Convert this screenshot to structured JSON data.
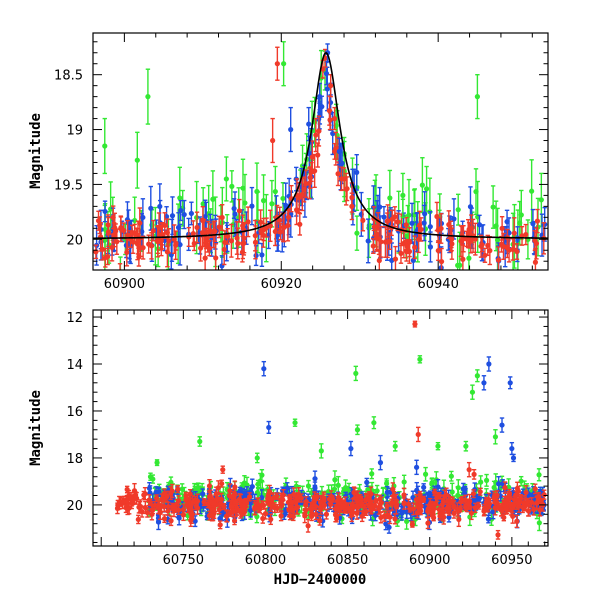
{
  "colors": {
    "green": "#33e833",
    "blue": "#1f4fe0",
    "red": "#f03a2a",
    "model": "#000000"
  },
  "chart_data": [
    {
      "type": "scatter",
      "title": "",
      "xlabel": "",
      "ylabel": "Magnitude",
      "xlim": [
        60896,
        60954
      ],
      "ylim": [
        20.28,
        18.12
      ],
      "y_inverted": true,
      "xticks": [
        60900,
        60920,
        60940
      ],
      "xtick_labels": [
        "60900",
        "60920",
        "60940"
      ],
      "yticks": [
        18.5,
        19,
        19.5,
        20
      ],
      "ytick_labels": [
        "18.5",
        "19",
        "19.5",
        "20"
      ],
      "series": [
        {
          "name": "green",
          "color": "green",
          "generate": {
            "x0": 60896.2,
            "x1": 60953.8,
            "n": 95,
            "base": 19.85,
            "scatter": 0.18,
            "err": 0.22,
            "seed": 11
          }
        },
        {
          "name": "blue",
          "color": "blue",
          "generate": {
            "x0": 60896.2,
            "x1": 60953.8,
            "n": 150,
            "base": 19.95,
            "scatter": 0.12,
            "err": 0.14,
            "seed": 23
          }
        },
        {
          "name": "red",
          "color": "red",
          "generate": {
            "x0": 60896.2,
            "x1": 60953.8,
            "n": 200,
            "base": 20.0,
            "scatter": 0.1,
            "err": 0.1,
            "seed": 37
          }
        }
      ],
      "flare_points": [
        {
          "x": 60918.9,
          "y": 19.1,
          "err": 0.2,
          "series": "red"
        },
        {
          "x": 60919.5,
          "y": 18.4,
          "err": 0.15,
          "series": "red"
        },
        {
          "x": 60920.3,
          "y": 18.4,
          "err": 0.2,
          "series": "green"
        },
        {
          "x": 60921.2,
          "y": 19.0,
          "err": 0.2,
          "series": "blue"
        },
        {
          "x": 60922.0,
          "y": 19.6,
          "err": 0.15,
          "series": "red"
        },
        {
          "x": 60923.5,
          "y": 18.95,
          "err": 0.15,
          "series": "blue"
        },
        {
          "x": 60924.4,
          "y": 19.05,
          "err": 0.15,
          "series": "red"
        },
        {
          "x": 60924.9,
          "y": 18.7,
          "err": 0.12,
          "series": "blue"
        },
        {
          "x": 60925.3,
          "y": 18.45,
          "err": 0.08,
          "series": "red"
        },
        {
          "x": 60925.6,
          "y": 18.35,
          "err": 0.08,
          "series": "red"
        },
        {
          "x": 60925.9,
          "y": 18.3,
          "err": 0.08,
          "series": "blue"
        },
        {
          "x": 60926.3,
          "y": 18.6,
          "err": 0.1,
          "series": "red"
        },
        {
          "x": 60926.8,
          "y": 18.9,
          "err": 0.1,
          "series": "red"
        },
        {
          "x": 60927.4,
          "y": 19.2,
          "err": 0.12,
          "series": "blue"
        },
        {
          "x": 60928.0,
          "y": 19.45,
          "err": 0.1,
          "series": "red"
        },
        {
          "x": 60929.0,
          "y": 19.7,
          "err": 0.12,
          "series": "red"
        },
        {
          "x": 60903.0,
          "y": 18.7,
          "err": 0.25,
          "series": "green"
        },
        {
          "x": 60913.0,
          "y": 19.45,
          "err": 0.2,
          "series": "green"
        },
        {
          "x": 60935.5,
          "y": 19.6,
          "err": 0.2,
          "series": "green"
        },
        {
          "x": 60945.0,
          "y": 18.7,
          "err": 0.2,
          "series": "green"
        },
        {
          "x": 60897.5,
          "y": 19.15,
          "err": 0.25,
          "series": "green"
        }
      ],
      "model": {
        "baseline": 20.0,
        "peak": 18.3,
        "t0": 60925.7,
        "tau": 2.2
      }
    },
    {
      "type": "scatter",
      "title": "",
      "xlabel": "HJD−2400000",
      "ylabel": "Magnitude",
      "xlim": [
        60695,
        60972
      ],
      "ylim": [
        21.75,
        11.7
      ],
      "y_inverted": true,
      "xticks": [
        60750,
        60800,
        60850,
        60900,
        60950
      ],
      "xtick_labels": [
        "60750",
        "60800",
        "60850",
        "60900",
        "60950"
      ],
      "yticks": [
        12,
        14,
        16,
        18,
        20
      ],
      "ytick_labels": [
        "12",
        "14",
        "16",
        "18",
        "20"
      ],
      "series": [
        {
          "name": "green",
          "color": "green",
          "generate": {
            "x0": 60728,
            "x1": 60970,
            "n": 260,
            "base": 19.7,
            "scatter": 0.45,
            "err": 0.25,
            "seed": 5
          }
        },
        {
          "name": "blue",
          "color": "blue",
          "generate": {
            "x0": 60728,
            "x1": 60970,
            "n": 340,
            "base": 19.9,
            "scatter": 0.35,
            "err": 0.22,
            "seed": 17
          }
        },
        {
          "name": "red",
          "color": "red",
          "generate": {
            "x0": 60708,
            "x1": 60970,
            "n": 430,
            "base": 20.0,
            "scatter": 0.3,
            "err": 0.2,
            "seed": 29
          }
        }
      ],
      "outliers": [
        {
          "x": 60891,
          "y": 12.3,
          "err": 0.12,
          "series": "red"
        },
        {
          "x": 60893,
          "y": 17.0,
          "err": 0.3,
          "series": "red"
        },
        {
          "x": 60774,
          "y": 18.5,
          "err": 0.15,
          "series": "red"
        },
        {
          "x": 60730,
          "y": 18.8,
          "err": 0.15,
          "series": "green"
        },
        {
          "x": 60734,
          "y": 18.2,
          "err": 0.12,
          "series": "green"
        },
        {
          "x": 60760,
          "y": 17.3,
          "err": 0.2,
          "series": "green"
        },
        {
          "x": 60795,
          "y": 18.0,
          "err": 0.2,
          "series": "green"
        },
        {
          "x": 60818,
          "y": 16.5,
          "err": 0.15,
          "series": "green"
        },
        {
          "x": 60834,
          "y": 17.7,
          "err": 0.3,
          "series": "green"
        },
        {
          "x": 60855,
          "y": 14.4,
          "err": 0.3,
          "series": "green"
        },
        {
          "x": 60856,
          "y": 16.8,
          "err": 0.2,
          "series": "green"
        },
        {
          "x": 60866,
          "y": 16.5,
          "err": 0.25,
          "series": "green"
        },
        {
          "x": 60879,
          "y": 17.5,
          "err": 0.2,
          "series": "green"
        },
        {
          "x": 60894,
          "y": 13.8,
          "err": 0.15,
          "series": "green"
        },
        {
          "x": 60905,
          "y": 17.5,
          "err": 0.15,
          "series": "green"
        },
        {
          "x": 60922,
          "y": 17.5,
          "err": 0.2,
          "series": "green"
        },
        {
          "x": 60926,
          "y": 15.2,
          "err": 0.3,
          "series": "green"
        },
        {
          "x": 60929,
          "y": 14.5,
          "err": 0.25,
          "series": "green"
        },
        {
          "x": 60940,
          "y": 17.1,
          "err": 0.3,
          "series": "green"
        },
        {
          "x": 60799,
          "y": 14.2,
          "err": 0.3,
          "series": "blue"
        },
        {
          "x": 60802,
          "y": 16.7,
          "err": 0.25,
          "series": "blue"
        },
        {
          "x": 60852,
          "y": 17.6,
          "err": 0.3,
          "series": "blue"
        },
        {
          "x": 60870,
          "y": 18.2,
          "err": 0.3,
          "series": "blue"
        },
        {
          "x": 60933,
          "y": 14.8,
          "err": 0.3,
          "series": "blue"
        },
        {
          "x": 60936,
          "y": 14.0,
          "err": 0.3,
          "series": "blue"
        },
        {
          "x": 60944,
          "y": 16.6,
          "err": 0.3,
          "series": "blue"
        },
        {
          "x": 60949,
          "y": 14.8,
          "err": 0.25,
          "series": "blue"
        },
        {
          "x": 60950,
          "y": 17.6,
          "err": 0.25,
          "series": "blue"
        },
        {
          "x": 60951,
          "y": 18.0,
          "err": 0.15,
          "series": "blue"
        },
        {
          "x": 60892,
          "y": 18.4,
          "err": 0.3,
          "series": "blue"
        },
        {
          "x": 60924,
          "y": 18.5,
          "err": 0.3,
          "series": "red"
        },
        {
          "x": 60927,
          "y": 18.7,
          "err": 0.2,
          "series": "red"
        }
      ]
    }
  ]
}
